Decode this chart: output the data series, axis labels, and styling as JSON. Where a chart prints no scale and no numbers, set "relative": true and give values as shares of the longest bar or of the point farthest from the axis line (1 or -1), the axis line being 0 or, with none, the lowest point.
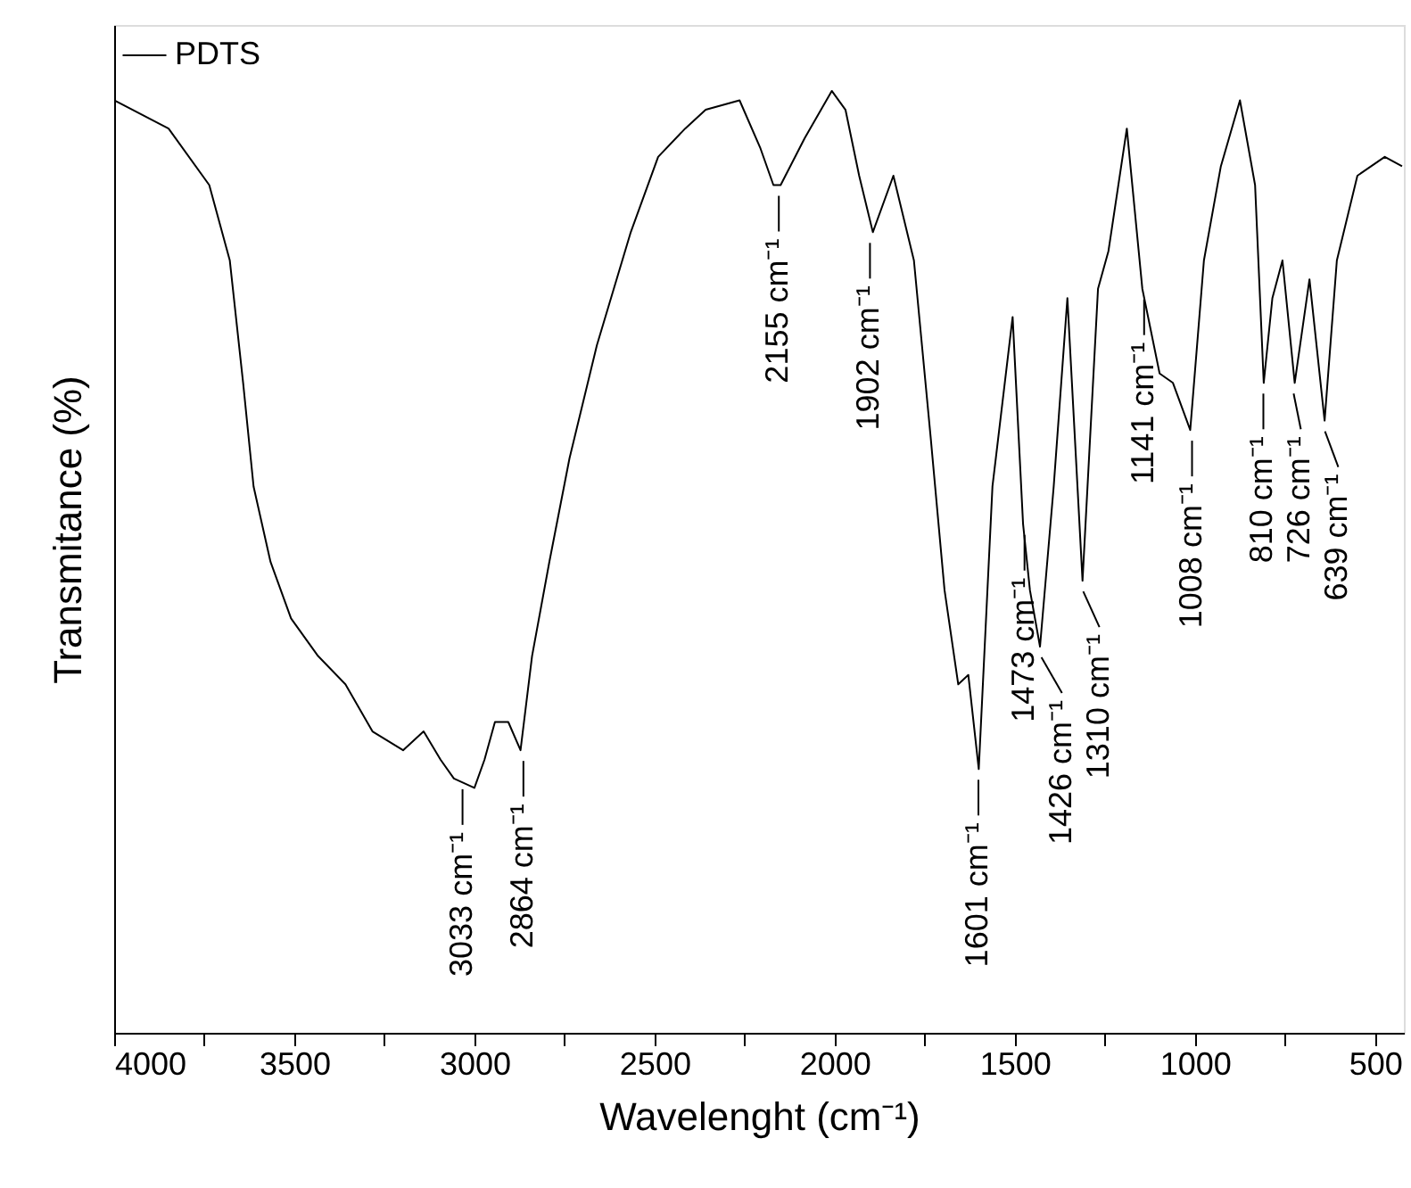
{
  "chart_data": {
    "type": "line",
    "relative": true,
    "xlabel": "Wavelenght (cm⁻¹)",
    "ylabel": "Transmitance (%)",
    "xlim": [
      4000,
      420
    ],
    "xticks": [
      4000,
      {
        "value": 3750,
        "label": null
      },
      3500,
      {
        "value": 3250,
        "label": null
      },
      3000,
      {
        "value": 2750,
        "label": null
      },
      2500,
      {
        "value": 2250,
        "label": null
      },
      2000,
      {
        "value": 1750,
        "label": null
      },
      1500,
      {
        "value": 1250,
        "label": null
      },
      1000,
      {
        "value": 750,
        "label": null
      },
      500
    ],
    "tick_labels": "x",
    "grid": false,
    "legend": "top left",
    "marker": "none",
    "line_style": "solid",
    "series": [
      {
        "name": "PDTS",
        "color": "#000000",
        "x": [
          4000,
          3849,
          3736,
          3679,
          3642,
          3613,
          3566,
          3509,
          3434,
          3358,
          3283,
          3198,
          3141,
          3094,
          3057,
          3000,
          2972,
          2943,
          2906,
          2872,
          2840,
          2792,
          2736,
          2660,
          2566,
          2490,
          2415,
          2358,
          2264,
          2207,
          2170,
          2150,
          2083,
          2008,
          1970,
          1932,
          1894,
          1837,
          1780,
          1733,
          1695,
          1657,
          1629,
          1600,
          1562,
          1506,
          1477,
          1458,
          1430,
          1392,
          1354,
          1312,
          1269,
          1240,
          1189,
          1146,
          1098,
          1061,
          1013,
          975,
          928,
          875,
          833,
          809,
          785,
          757,
          723,
          682,
          640,
          606,
          549,
          473,
          425
        ],
        "values": [
          0.99,
          0.96,
          0.9,
          0.82,
          0.69,
          0.58,
          0.5,
          0.44,
          0.4,
          0.37,
          0.32,
          0.3,
          0.32,
          0.29,
          0.27,
          0.26,
          0.29,
          0.33,
          0.33,
          0.3,
          0.4,
          0.5,
          0.61,
          0.73,
          0.85,
          0.93,
          0.96,
          0.98,
          0.99,
          0.94,
          0.9,
          0.9,
          0.95,
          1.0,
          0.98,
          0.91,
          0.85,
          0.91,
          0.82,
          0.63,
          0.47,
          0.37,
          0.38,
          0.28,
          0.58,
          0.76,
          0.54,
          0.47,
          0.41,
          0.58,
          0.78,
          0.48,
          0.79,
          0.83,
          0.96,
          0.79,
          0.7,
          0.69,
          0.64,
          0.82,
          0.92,
          0.99,
          0.9,
          0.69,
          0.78,
          0.82,
          0.69,
          0.8,
          0.65,
          0.82,
          0.91,
          0.93,
          0.92
        ]
      }
    ],
    "annotations": [
      {
        "text": "3033 cm⁻¹",
        "x": 3033,
        "y": 0.27
      },
      {
        "text": "2864 cm⁻¹",
        "x": 2864,
        "y": 0.3
      },
      {
        "text": "2155 cm⁻¹",
        "x": 2155,
        "y": 0.9
      },
      {
        "text": "1902 cm⁻¹",
        "x": 1902,
        "y": 0.85
      },
      {
        "text": "1601 cm⁻¹",
        "x": 1601,
        "y": 0.28
      },
      {
        "text": "1473 cm⁻¹",
        "x": 1473,
        "y": 0.54
      },
      {
        "text": "1426 cm⁻¹",
        "x": 1426,
        "y": 0.41
      },
      {
        "text": "1310 cm⁻¹",
        "x": 1310,
        "y": 0.48
      },
      {
        "text": "1141 cm⁻¹",
        "x": 1141,
        "y": 0.79
      },
      {
        "text": "1008 cm⁻¹",
        "x": 1008,
        "y": 0.64
      },
      {
        "text": "810 cm⁻¹",
        "x": 810,
        "y": 0.69
      },
      {
        "text": "726 cm⁻¹",
        "x": 726,
        "y": 0.69
      },
      {
        "text": "639 cm⁻¹",
        "x": 639,
        "y": 0.65
      }
    ]
  }
}
